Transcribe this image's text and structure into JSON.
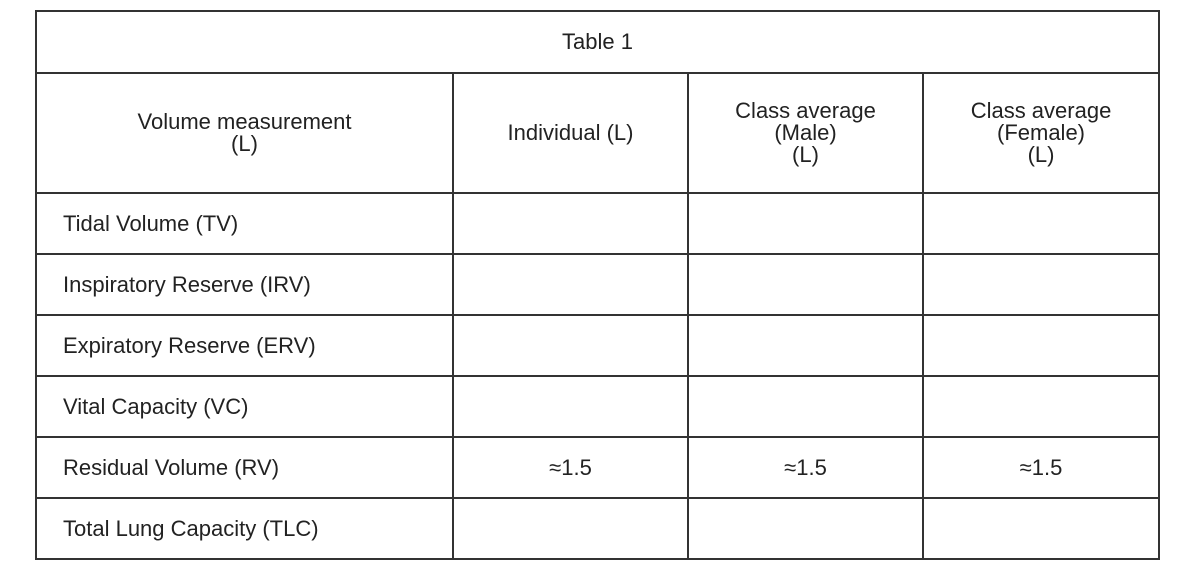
{
  "table": {
    "title": "Table 1",
    "headers": [
      [
        "Volume measurement",
        "(L)"
      ],
      [
        "Individual (L)"
      ],
      [
        "Class average",
        "(Male)",
        "(L)"
      ],
      [
        "Class average",
        "(Female)",
        "(L)"
      ]
    ],
    "rows": [
      {
        "label": "Tidal Volume (TV)"
      },
      {
        "label": "Inspiratory Reserve (IRV)"
      },
      {
        "label": "Expiratory Reserve (ERV)"
      },
      {
        "label": "Vital Capacity (VC)"
      },
      {
        "label": "Residual Volume (RV)",
        "values": [
          "≈1.5",
          "≈1.5",
          "≈1.5"
        ]
      },
      {
        "label": "Total Lung Capacity (TLC)"
      }
    ]
  }
}
